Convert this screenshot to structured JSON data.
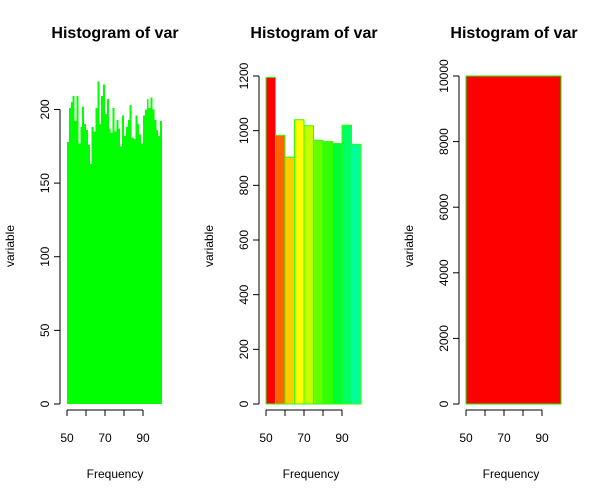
{
  "chart_data": [
    {
      "type": "bar",
      "title": "Histogram of var",
      "xlabel": "Frequency",
      "ylabel": "variable",
      "xlim": [
        50,
        100
      ],
      "ylim": [
        0,
        220
      ],
      "x_ticks": [
        "50",
        "70",
        "90"
      ],
      "y_ticks": [
        "0",
        "50",
        "100",
        "150",
        "200"
      ],
      "bins_start": 50,
      "bin_width": 1,
      "values": [
        178,
        201,
        205,
        209,
        192,
        209,
        177,
        188,
        202,
        190,
        186,
        176,
        163,
        188,
        185,
        201,
        219,
        190,
        209,
        217,
        197,
        207,
        187,
        184,
        201,
        185,
        193,
        187,
        175,
        196,
        182,
        188,
        193,
        203,
        181,
        180,
        196,
        190,
        183,
        177,
        196,
        200,
        207,
        201,
        208,
        200,
        193,
        186,
        182,
        192
      ],
      "bar_color": "#00ff00",
      "grid": false
    },
    {
      "type": "bar",
      "title": "Histogram of var",
      "xlabel": "Frequency",
      "ylabel": "variable",
      "xlim": [
        50,
        100
      ],
      "ylim": [
        0,
        1200
      ],
      "x_ticks": [
        "50",
        "70",
        "90"
      ],
      "y_ticks": [
        "0",
        "200",
        "400",
        "600",
        "800",
        "1000",
        "1200"
      ],
      "bins_start": 50,
      "bin_width": 5,
      "values": [
        1195,
        983,
        903,
        1040,
        1018,
        965,
        960,
        953,
        1020,
        950
      ],
      "bar_colors": [
        "#ff0000",
        "#ff6400",
        "#ffcc00",
        "#ffff00",
        "#c8ff00",
        "#64ff00",
        "#32ff00",
        "#00ff32",
        "#00ff64",
        "#00ff96"
      ],
      "bar_border": "#32ff00",
      "grid": false
    },
    {
      "type": "bar",
      "title": "Histogram of var",
      "xlabel": "Frequency",
      "ylabel": "variable",
      "xlim": [
        50,
        100
      ],
      "ylim": [
        0,
        10000
      ],
      "x_ticks": [
        "50",
        "70",
        "90"
      ],
      "y_ticks": [
        "0",
        "2000",
        "4000",
        "6000",
        "8000",
        "10000"
      ],
      "bins_start": 50,
      "bin_width": 50,
      "values": [
        10000
      ],
      "bar_color": "#ff0000",
      "bar_border": "#00ff00",
      "grid": false
    }
  ]
}
